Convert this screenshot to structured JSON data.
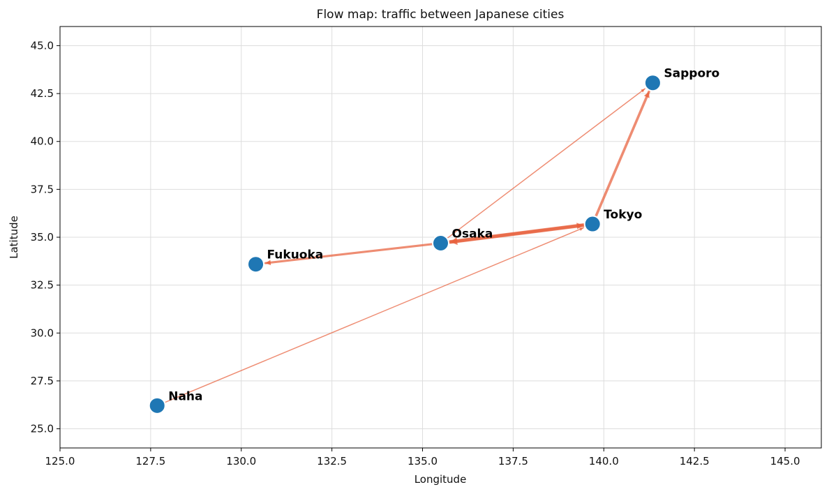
{
  "chart_data": {
    "type": "flow-map",
    "title": "Flow map: traffic between Japanese cities",
    "xlabel": "Longitude",
    "ylabel": "Latitude",
    "xlim": [
      125,
      146
    ],
    "ylim": [
      24,
      46
    ],
    "xticks": [
      "125.0",
      "127.5",
      "130.0",
      "132.5",
      "135.0",
      "137.5",
      "140.0",
      "142.5",
      "145.0"
    ],
    "yticks": [
      "25.0",
      "27.5",
      "30.0",
      "32.5",
      "35.0",
      "37.5",
      "40.0",
      "42.5",
      "45.0"
    ],
    "grid": true,
    "colors": {
      "node": "#1f77b4",
      "flow": "#e8603c"
    },
    "nodes": [
      {
        "name": "Sapporo",
        "lon": 141.35,
        "lat": 43.06
      },
      {
        "name": "Tokyo",
        "lon": 139.69,
        "lat": 35.69
      },
      {
        "name": "Osaka",
        "lon": 135.5,
        "lat": 34.69
      },
      {
        "name": "Fukuoka",
        "lon": 130.4,
        "lat": 33.59
      },
      {
        "name": "Naha",
        "lon": 127.68,
        "lat": 26.21
      }
    ],
    "flows": [
      {
        "from": "Tokyo",
        "to": "Sapporo",
        "weight": 5
      },
      {
        "from": "Tokyo",
        "to": "Osaka",
        "weight": 8
      },
      {
        "from": "Osaka",
        "to": "Tokyo",
        "weight": 6
      },
      {
        "from": "Osaka",
        "to": "Fukuoka",
        "weight": 4
      },
      {
        "from": "Osaka",
        "to": "Sapporo",
        "weight": 1
      },
      {
        "from": "Naha",
        "to": "Tokyo",
        "weight": 1
      }
    ]
  }
}
